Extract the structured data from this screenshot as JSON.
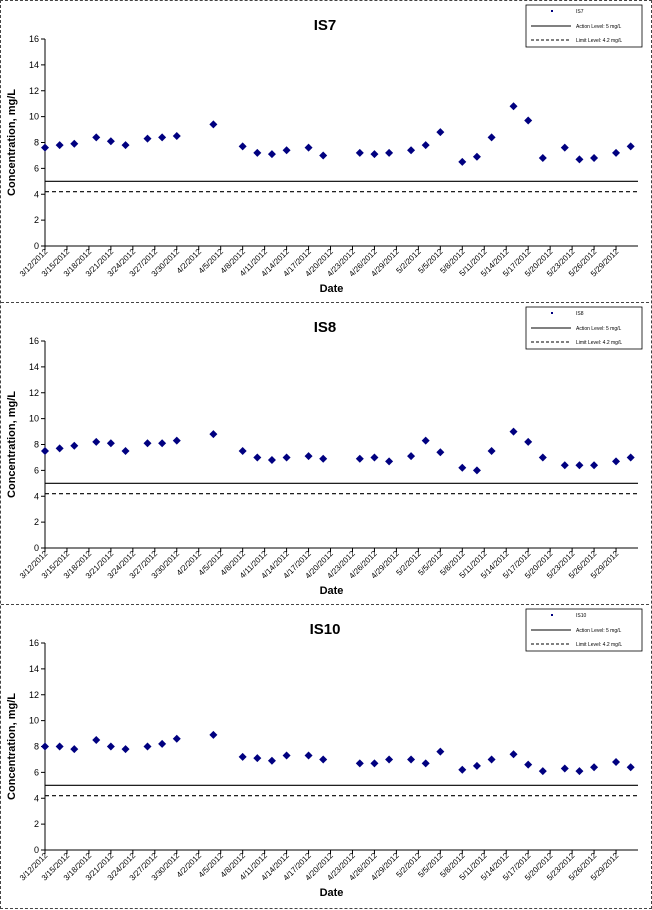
{
  "chart_data": [
    {
      "type": "scatter",
      "title": "IS7",
      "xlabel": "Date",
      "ylabel": "Concentration, mg/L",
      "ylim": [
        0,
        16
      ],
      "yticks": [
        "0",
        "2",
        "4",
        "6",
        "8",
        "10",
        "12",
        "14",
        "16"
      ],
      "grid": false,
      "legend_position": "top-right",
      "x_tick_labels": [
        "3/12/2012",
        "3/15/2012",
        "3/18/2012",
        "3/21/2012",
        "3/24/2012",
        "3/27/2012",
        "3/30/2012",
        "4/2/2012",
        "4/5/2012",
        "4/8/2012",
        "4/11/2012",
        "4/14/2012",
        "4/17/2012",
        "4/20/2012",
        "4/23/2012",
        "4/26/2012",
        "4/29/2012",
        "5/2/2012",
        "5/5/2012",
        "5/8/2012",
        "5/11/2012",
        "5/14/2012",
        "5/17/2012",
        "5/20/2012",
        "5/23/2012",
        "5/26/2012",
        "5/29/2012"
      ],
      "legend": [
        {
          "label": "IS7",
          "style": "marker"
        },
        {
          "label": "Action Level: 5 mg/L",
          "style": "solid"
        },
        {
          "label": "Limit Level: 4.2 mg/L",
          "style": "dashed"
        }
      ],
      "reference_lines": [
        {
          "value": 5.0,
          "style": "solid"
        },
        {
          "value": 4.2,
          "style": "dashed"
        }
      ],
      "series": [
        {
          "name": "IS7",
          "color": "#000080",
          "x": [
            "3/12/2012",
            "3/14/2012",
            "3/16/2012",
            "3/19/2012",
            "3/21/2012",
            "3/23/2012",
            "3/26/2012",
            "3/28/2012",
            "3/30/2012",
            "4/4/2012",
            "4/8/2012",
            "4/10/2012",
            "4/12/2012",
            "4/14/2012",
            "4/17/2012",
            "4/19/2012",
            "4/24/2012",
            "4/26/2012",
            "4/28/2012",
            "5/1/2012",
            "5/3/2012",
            "5/5/2012",
            "5/8/2012",
            "5/10/2012",
            "5/12/2012",
            "5/15/2012",
            "5/17/2012",
            "5/19/2012",
            "5/22/2012",
            "5/24/2012",
            "5/26/2012",
            "5/29/2012",
            "5/31/2012"
          ],
          "values": [
            7.6,
            7.8,
            7.9,
            8.4,
            8.1,
            7.8,
            8.3,
            8.4,
            8.5,
            9.4,
            7.7,
            7.2,
            7.1,
            7.4,
            7.6,
            7.0,
            7.2,
            7.1,
            7.2,
            7.4,
            7.8,
            8.8,
            6.5,
            6.9,
            8.4,
            10.8,
            9.7,
            6.8,
            7.6,
            6.7,
            6.8,
            7.2,
            7.7
          ]
        }
      ]
    },
    {
      "type": "scatter",
      "title": "IS8",
      "xlabel": "Date",
      "ylabel": "Concentration, mg/L",
      "ylim": [
        0,
        16
      ],
      "yticks": [
        "0",
        "2",
        "4",
        "6",
        "8",
        "10",
        "12",
        "14",
        "16"
      ],
      "grid": false,
      "legend_position": "top-right",
      "x_tick_labels": [
        "3/12/2012",
        "3/15/2012",
        "3/18/2012",
        "3/21/2012",
        "3/24/2012",
        "3/27/2012",
        "3/30/2012",
        "4/2/2012",
        "4/5/2012",
        "4/8/2012",
        "4/11/2012",
        "4/14/2012",
        "4/17/2012",
        "4/20/2012",
        "4/23/2012",
        "4/26/2012",
        "4/29/2012",
        "5/2/2012",
        "5/5/2012",
        "5/8/2012",
        "5/11/2012",
        "5/14/2012",
        "5/17/2012",
        "5/20/2012",
        "5/23/2012",
        "5/26/2012",
        "5/29/2012"
      ],
      "legend": [
        {
          "label": "IS8",
          "style": "marker"
        },
        {
          "label": "Action Level: 5 mg/L",
          "style": "solid"
        },
        {
          "label": "Limit Level: 4.2 mg/L",
          "style": "dashed"
        }
      ],
      "reference_lines": [
        {
          "value": 5.0,
          "style": "solid"
        },
        {
          "value": 4.2,
          "style": "dashed"
        }
      ],
      "series": [
        {
          "name": "IS8",
          "color": "#000080",
          "x": [
            "3/12/2012",
            "3/14/2012",
            "3/16/2012",
            "3/19/2012",
            "3/21/2012",
            "3/23/2012",
            "3/26/2012",
            "3/28/2012",
            "3/30/2012",
            "4/4/2012",
            "4/8/2012",
            "4/10/2012",
            "4/12/2012",
            "4/14/2012",
            "4/17/2012",
            "4/19/2012",
            "4/24/2012",
            "4/26/2012",
            "4/28/2012",
            "5/1/2012",
            "5/3/2012",
            "5/5/2012",
            "5/8/2012",
            "5/10/2012",
            "5/12/2012",
            "5/15/2012",
            "5/17/2012",
            "5/19/2012",
            "5/22/2012",
            "5/24/2012",
            "5/26/2012",
            "5/29/2012",
            "5/31/2012"
          ],
          "values": [
            7.5,
            7.7,
            7.9,
            8.2,
            8.1,
            7.5,
            8.1,
            8.1,
            8.3,
            8.8,
            7.5,
            7.0,
            6.8,
            7.0,
            7.1,
            6.9,
            6.9,
            7.0,
            6.7,
            7.1,
            8.3,
            7.4,
            6.2,
            6.0,
            7.5,
            9.0,
            8.2,
            7.0,
            6.4,
            6.4,
            6.4,
            6.7,
            7.0
          ]
        }
      ]
    },
    {
      "type": "scatter",
      "title": "IS10",
      "xlabel": "Date",
      "ylabel": "Concentration, mg/L",
      "ylim": [
        0,
        16
      ],
      "yticks": [
        "0",
        "2",
        "4",
        "6",
        "8",
        "10",
        "12",
        "14",
        "16"
      ],
      "grid": false,
      "legend_position": "top-right",
      "x_tick_labels": [
        "3/12/2012",
        "3/15/2012",
        "3/18/2012",
        "3/21/2012",
        "3/24/2012",
        "3/27/2012",
        "3/30/2012",
        "4/2/2012",
        "4/5/2012",
        "4/8/2012",
        "4/11/2012",
        "4/14/2012",
        "4/17/2012",
        "4/20/2012",
        "4/23/2012",
        "4/26/2012",
        "4/29/2012",
        "5/2/2012",
        "5/5/2012",
        "5/8/2012",
        "5/11/2012",
        "5/14/2012",
        "5/17/2012",
        "5/20/2012",
        "5/23/2012",
        "5/26/2012",
        "5/29/2012"
      ],
      "legend": [
        {
          "label": "IS10",
          "style": "marker"
        },
        {
          "label": "Action Level: 5 mg/L",
          "style": "solid"
        },
        {
          "label": "Limit Level: 4.2 mg/L",
          "style": "dashed"
        }
      ],
      "reference_lines": [
        {
          "value": 5.0,
          "style": "solid"
        },
        {
          "value": 4.2,
          "style": "dashed"
        }
      ],
      "series": [
        {
          "name": "IS10",
          "color": "#000080",
          "x": [
            "3/12/2012",
            "3/14/2012",
            "3/16/2012",
            "3/19/2012",
            "3/21/2012",
            "3/23/2012",
            "3/26/2012",
            "3/28/2012",
            "3/30/2012",
            "4/4/2012",
            "4/8/2012",
            "4/10/2012",
            "4/12/2012",
            "4/14/2012",
            "4/17/2012",
            "4/19/2012",
            "4/24/2012",
            "4/26/2012",
            "4/28/2012",
            "5/1/2012",
            "5/3/2012",
            "5/5/2012",
            "5/8/2012",
            "5/10/2012",
            "5/12/2012",
            "5/15/2012",
            "5/17/2012",
            "5/19/2012",
            "5/22/2012",
            "5/24/2012",
            "5/26/2012",
            "5/29/2012",
            "5/31/2012"
          ],
          "values": [
            8.0,
            8.0,
            7.8,
            8.5,
            8.0,
            7.8,
            8.0,
            8.2,
            8.6,
            8.9,
            7.2,
            7.1,
            6.9,
            7.3,
            7.3,
            7.0,
            6.7,
            6.7,
            7.0,
            7.0,
            6.7,
            7.6,
            6.2,
            6.5,
            7.0,
            7.4,
            6.6,
            6.1,
            6.3,
            6.1,
            6.4,
            6.8,
            6.4
          ]
        }
      ]
    }
  ]
}
